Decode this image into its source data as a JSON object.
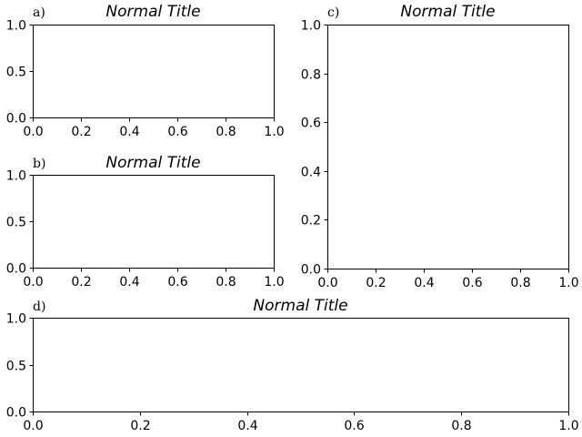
{
  "chart_data": [
    {
      "id": "a",
      "type": "line",
      "panel_label": "a)",
      "title": "Normal Title",
      "xlabel": "",
      "ylabel": "",
      "xlim": [
        0,
        1
      ],
      "ylim": [
        0,
        1
      ],
      "xticks": [
        0.0,
        0.2,
        0.4,
        0.6,
        0.8,
        1.0
      ],
      "xtick_labels": [
        "0.0",
        "0.2",
        "0.4",
        "0.6",
        "0.8",
        "1.0"
      ],
      "yticks": [
        0.0,
        0.5,
        1.0
      ],
      "ytick_labels": [
        "0.0",
        "0.5",
        "1.0"
      ],
      "series": [],
      "grid": false
    },
    {
      "id": "b",
      "type": "line",
      "panel_label": "b)",
      "title": "Normal Title",
      "xlabel": "",
      "ylabel": "",
      "xlim": [
        0,
        1
      ],
      "ylim": [
        0,
        1
      ],
      "xticks": [
        0.0,
        0.2,
        0.4,
        0.6,
        0.8,
        1.0
      ],
      "xtick_labels": [
        "0.0",
        "0.2",
        "0.4",
        "0.6",
        "0.8",
        "1.0"
      ],
      "yticks": [
        0.0,
        0.5,
        1.0
      ],
      "ytick_labels": [
        "0.0",
        "0.5",
        "1.0"
      ],
      "series": [],
      "grid": false
    },
    {
      "id": "c",
      "type": "line",
      "panel_label": "c)",
      "title": "Normal Title",
      "xlabel": "",
      "ylabel": "",
      "xlim": [
        0,
        1
      ],
      "ylim": [
        0,
        1
      ],
      "xticks": [
        0.0,
        0.2,
        0.4,
        0.6,
        0.8,
        1.0
      ],
      "xtick_labels": [
        "0.0",
        "0.2",
        "0.4",
        "0.6",
        "0.8",
        "1.0"
      ],
      "yticks": [
        0.0,
        0.2,
        0.4,
        0.6,
        0.8,
        1.0
      ],
      "ytick_labels": [
        "0.0",
        "0.2",
        "0.4",
        "0.6",
        "0.8",
        "1.0"
      ],
      "series": [],
      "grid": false
    },
    {
      "id": "d",
      "type": "line",
      "panel_label": "d)",
      "title": "Normal Title",
      "xlabel": "",
      "ylabel": "",
      "xlim": [
        0,
        1
      ],
      "ylim": [
        0,
        1
      ],
      "xticks": [
        0.0,
        0.2,
        0.4,
        0.6,
        0.8,
        1.0
      ],
      "xtick_labels": [
        "0.0",
        "0.2",
        "0.4",
        "0.6",
        "0.8",
        "1.0"
      ],
      "yticks": [
        0.0,
        0.5,
        1.0
      ],
      "ytick_labels": [
        "0.0",
        "0.5",
        "1.0"
      ],
      "series": [],
      "grid": false
    }
  ]
}
